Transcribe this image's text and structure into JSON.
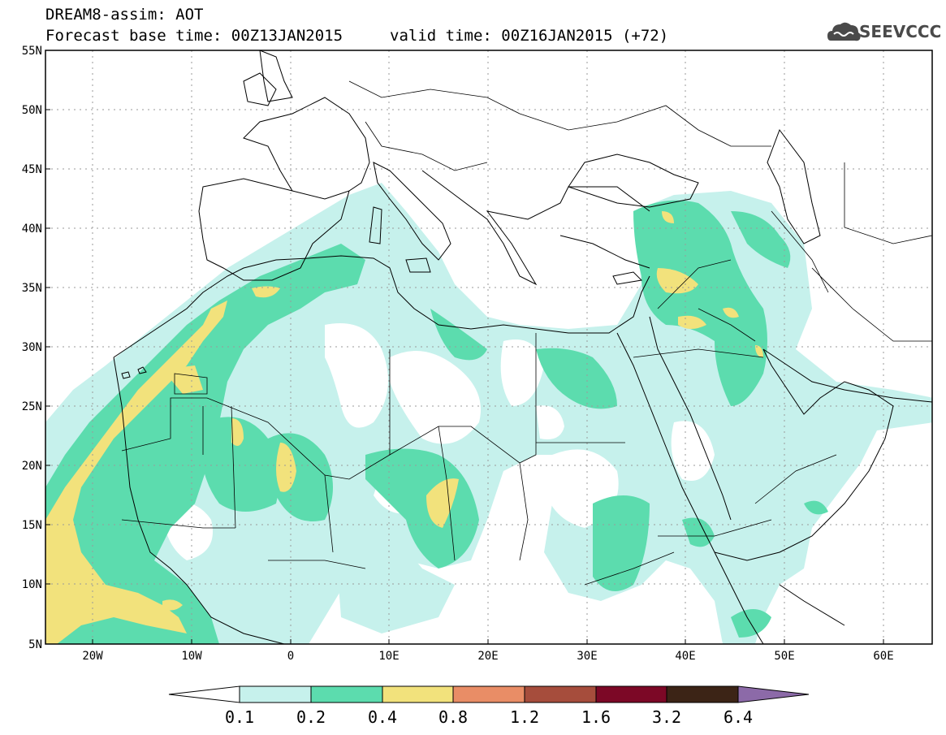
{
  "header": {
    "line1": "DREAM8-assim: AOT",
    "line2": "Forecast base time: 00Z13JAN2015",
    "line2b": "valid time: 00Z16JAN2015 (+72)",
    "logo_text": "SEEVCCC"
  },
  "map": {
    "variable": "AOT",
    "lon_range": [
      -25,
      65
    ],
    "lat_range": [
      5,
      55
    ],
    "lat_labels": [
      "55N",
      "50N",
      "45N",
      "40N",
      "35N",
      "30N",
      "25N",
      "20N",
      "15N",
      "10N",
      "5N"
    ],
    "lon_labels": [
      "20W",
      "10W",
      "0",
      "10E",
      "20E",
      "30E",
      "40E",
      "50E",
      "60E"
    ]
  },
  "legend": {
    "thresholds": [
      "0.1",
      "0.2",
      "0.4",
      "0.8",
      "1.2",
      "1.6",
      "3.2",
      "6.4"
    ],
    "colors": [
      "#ffffff",
      "#c6f1ec",
      "#5cdcae",
      "#f2e27c",
      "#e98d66",
      "#a64d3c",
      "#7c0826",
      "#3c2416",
      "#8c6aa8"
    ]
  },
  "colors": {
    "band_0_1": "#c6f1ec",
    "band_0_2": "#5cdcae",
    "band_0_4": "#f2e27c",
    "border": "#000000",
    "grid": "#9a9a9a"
  }
}
